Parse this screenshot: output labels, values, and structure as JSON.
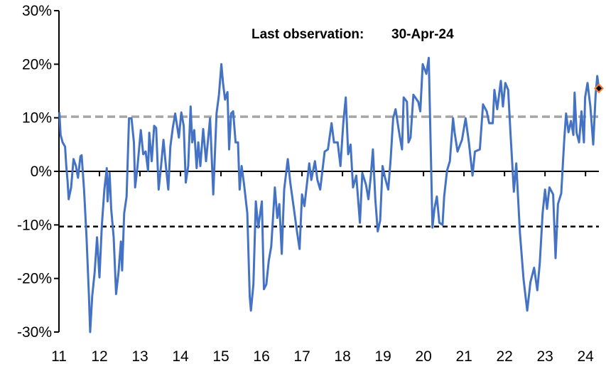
{
  "chart_data": {
    "type": "line",
    "title": "",
    "xlabel": "",
    "ylabel": "",
    "annotation": {
      "label": "Last observation:",
      "date": "30-Apr-24"
    },
    "xlim": [
      11,
      24.33
    ],
    "ylim": [
      -30,
      30
    ],
    "x_ticks": [
      "11",
      "12",
      "13",
      "14",
      "15",
      "16",
      "17",
      "18",
      "19",
      "20",
      "21",
      "22",
      "23",
      "24"
    ],
    "x_tick_values": [
      11,
      12,
      13,
      14,
      15,
      16,
      17,
      18,
      19,
      20,
      21,
      22,
      23,
      24
    ],
    "y_ticks": [
      "-30%",
      "-20%",
      "-10%",
      "0%",
      "10%",
      "20%",
      "30%"
    ],
    "y_tick_values": [
      -30,
      -20,
      -10,
      0,
      10,
      20,
      30
    ],
    "grid": false,
    "reference_lines": [
      {
        "value": 10.2,
        "style": "dashed",
        "color": "#a6a6a6"
      },
      {
        "value": -10.3,
        "style": "dashed",
        "color": "#000000"
      },
      {
        "value": 0,
        "style": "solid",
        "color": "#000000"
      }
    ],
    "last_point": {
      "x": 24.33,
      "y": 15.5,
      "marker": "diamond",
      "color": "#ed7d31"
    },
    "series": [
      {
        "color": "#4472c4",
        "x": [
          11.01,
          11.04,
          11.09,
          11.15,
          11.18,
          11.21,
          11.24,
          11.3,
          11.36,
          11.42,
          11.47,
          11.53,
          11.56,
          11.62,
          11.68,
          11.74,
          11.77,
          11.82,
          11.88,
          11.94,
          12.0,
          12.06,
          12.12,
          12.18,
          12.2,
          12.25,
          12.29,
          12.35,
          12.41,
          12.47,
          12.53,
          12.56,
          12.61,
          12.67,
          12.73,
          12.79,
          12.85,
          12.88,
          12.94,
          13.02,
          13.08,
          13.14,
          13.2,
          13.23,
          13.29,
          13.35,
          13.4,
          13.46,
          13.52,
          13.58,
          13.64,
          13.7,
          13.75,
          13.81,
          13.87,
          13.96,
          14.02,
          14.08,
          14.13,
          14.19,
          14.25,
          14.29,
          14.34,
          14.4,
          14.44,
          14.49,
          14.56,
          14.63,
          14.73,
          14.81,
          14.89,
          14.95,
          15.01,
          15.05,
          15.1,
          15.16,
          15.2,
          15.25,
          15.3,
          15.36,
          15.42,
          15.46,
          15.51,
          15.57,
          15.65,
          15.71,
          15.74,
          15.8,
          15.86,
          15.92,
          16.01,
          16.06,
          16.12,
          16.18,
          16.24,
          16.33,
          16.39,
          16.44,
          16.5,
          16.56,
          16.65,
          16.71,
          16.8,
          16.88,
          16.94,
          17.0,
          17.06,
          17.18,
          17.23,
          17.32,
          17.38,
          17.45,
          17.56,
          17.64,
          17.73,
          17.79,
          17.88,
          17.95,
          18.02,
          18.08,
          18.14,
          18.2,
          18.26,
          18.34,
          18.43,
          18.49,
          18.58,
          18.64,
          18.7,
          18.75,
          18.81,
          18.87,
          18.93,
          18.99,
          19.05,
          19.13,
          19.19,
          19.25,
          19.31,
          19.4,
          19.47,
          19.51,
          19.59,
          19.63,
          19.68,
          19.75,
          19.87,
          19.92,
          19.98,
          20.07,
          20.13,
          20.19,
          20.22,
          20.27,
          20.33,
          20.39,
          20.47,
          20.51,
          20.58,
          20.65,
          20.73,
          20.77,
          20.84,
          20.95,
          21.04,
          21.12,
          21.21,
          21.27,
          21.39,
          21.47,
          21.56,
          21.62,
          21.71,
          21.75,
          21.82,
          21.91,
          21.96,
          22.02,
          22.09,
          22.15,
          22.23,
          22.29,
          22.38,
          22.47,
          22.56,
          22.64,
          22.73,
          22.81,
          22.87,
          22.94,
          23.0,
          23.05,
          23.11,
          23.2,
          23.26,
          23.32,
          23.4,
          23.47,
          23.52,
          23.58,
          23.64,
          23.7,
          23.73,
          23.78,
          23.84,
          23.9,
          23.96,
          23.99,
          24.05,
          24.12,
          24.19,
          24.25,
          24.29,
          24.33
        ],
        "y": [
          11.0,
          6.8,
          5.4,
          4.6,
          1.0,
          -1.6,
          -5.2,
          -3.0,
          2.3,
          1.0,
          -1.2,
          2.8,
          3.0,
          -3.4,
          -12.3,
          -23.3,
          -30.0,
          -23.3,
          -18.9,
          -12.3,
          -19.8,
          -10.0,
          -3.4,
          0.6,
          -5.6,
          -0.3,
          -7.0,
          -12.3,
          -22.9,
          -18.9,
          -13.1,
          -18.5,
          -7.8,
          -4.7,
          9.9,
          9.9,
          5.4,
          -3.0,
          1.0,
          7.7,
          3.2,
          3.7,
          0.1,
          7.2,
          1.9,
          8.5,
          8.1,
          -3.4,
          1.0,
          5.9,
          1.0,
          -3.4,
          4.6,
          8.1,
          10.8,
          6.3,
          11.0,
          8.5,
          -2.1,
          1.0,
          12.1,
          5.4,
          7.7,
          0.6,
          5.4,
          1.0,
          7.9,
          1.9,
          9.9,
          -4.3,
          10.8,
          14.3,
          20.0,
          16.5,
          13.4,
          14.8,
          4.1,
          10.8,
          11.2,
          5.4,
          5.4,
          -3.4,
          1.0,
          -2.5,
          -7.8,
          -23.3,
          -26.0,
          -21.1,
          -5.6,
          -10.5,
          -5.6,
          -22.0,
          -21.1,
          -16.7,
          -14.0,
          -3.0,
          -8.7,
          -6.1,
          -15.4,
          -3.4,
          2.3,
          -2.1,
          -7.0,
          -11.4,
          -14.5,
          -4.3,
          -6.5,
          1.5,
          -1.6,
          1.9,
          -1.6,
          -3.4,
          3.7,
          4.1,
          9.0,
          5.4,
          5.4,
          1.0,
          9.0,
          13.8,
          3.2,
          5.0,
          -3.0,
          -0.8,
          -9.6,
          -0.3,
          -2.5,
          -5.2,
          -0.8,
          4.1,
          -5.2,
          -11.2,
          -9.2,
          1.0,
          -1.2,
          -3.4,
          2.3,
          9.9,
          11.6,
          7.2,
          4.1,
          13.8,
          13.0,
          5.4,
          6.3,
          14.3,
          13.0,
          11.2,
          20.0,
          18.2,
          21.2,
          0.1,
          -10.5,
          -7.0,
          -4.7,
          -9.6,
          -10.0,
          -4.7,
          0.1,
          1.9,
          9.9,
          7.2,
          3.7,
          5.9,
          9.9,
          5.4,
          -0.8,
          3.7,
          4.1,
          12.5,
          11.2,
          9.0,
          9.0,
          15.2,
          11.6,
          16.9,
          12.1,
          16.5,
          15.2,
          6.8,
          -3.8,
          1.5,
          -11.4,
          -20.2,
          -26.0,
          -20.7,
          -18.0,
          -22.2,
          -17.1,
          -7.8,
          -3.4,
          -7.0,
          -3.0,
          -4.3,
          -16.2,
          -6.1,
          -4.1,
          5.4,
          10.8,
          7.3,
          9.4,
          6.8,
          14.7,
          7.2,
          5.4,
          11.2,
          5.4,
          13.8,
          16.5,
          12.1,
          5.0,
          14.3,
          17.8,
          15.5
        ]
      }
    ]
  }
}
